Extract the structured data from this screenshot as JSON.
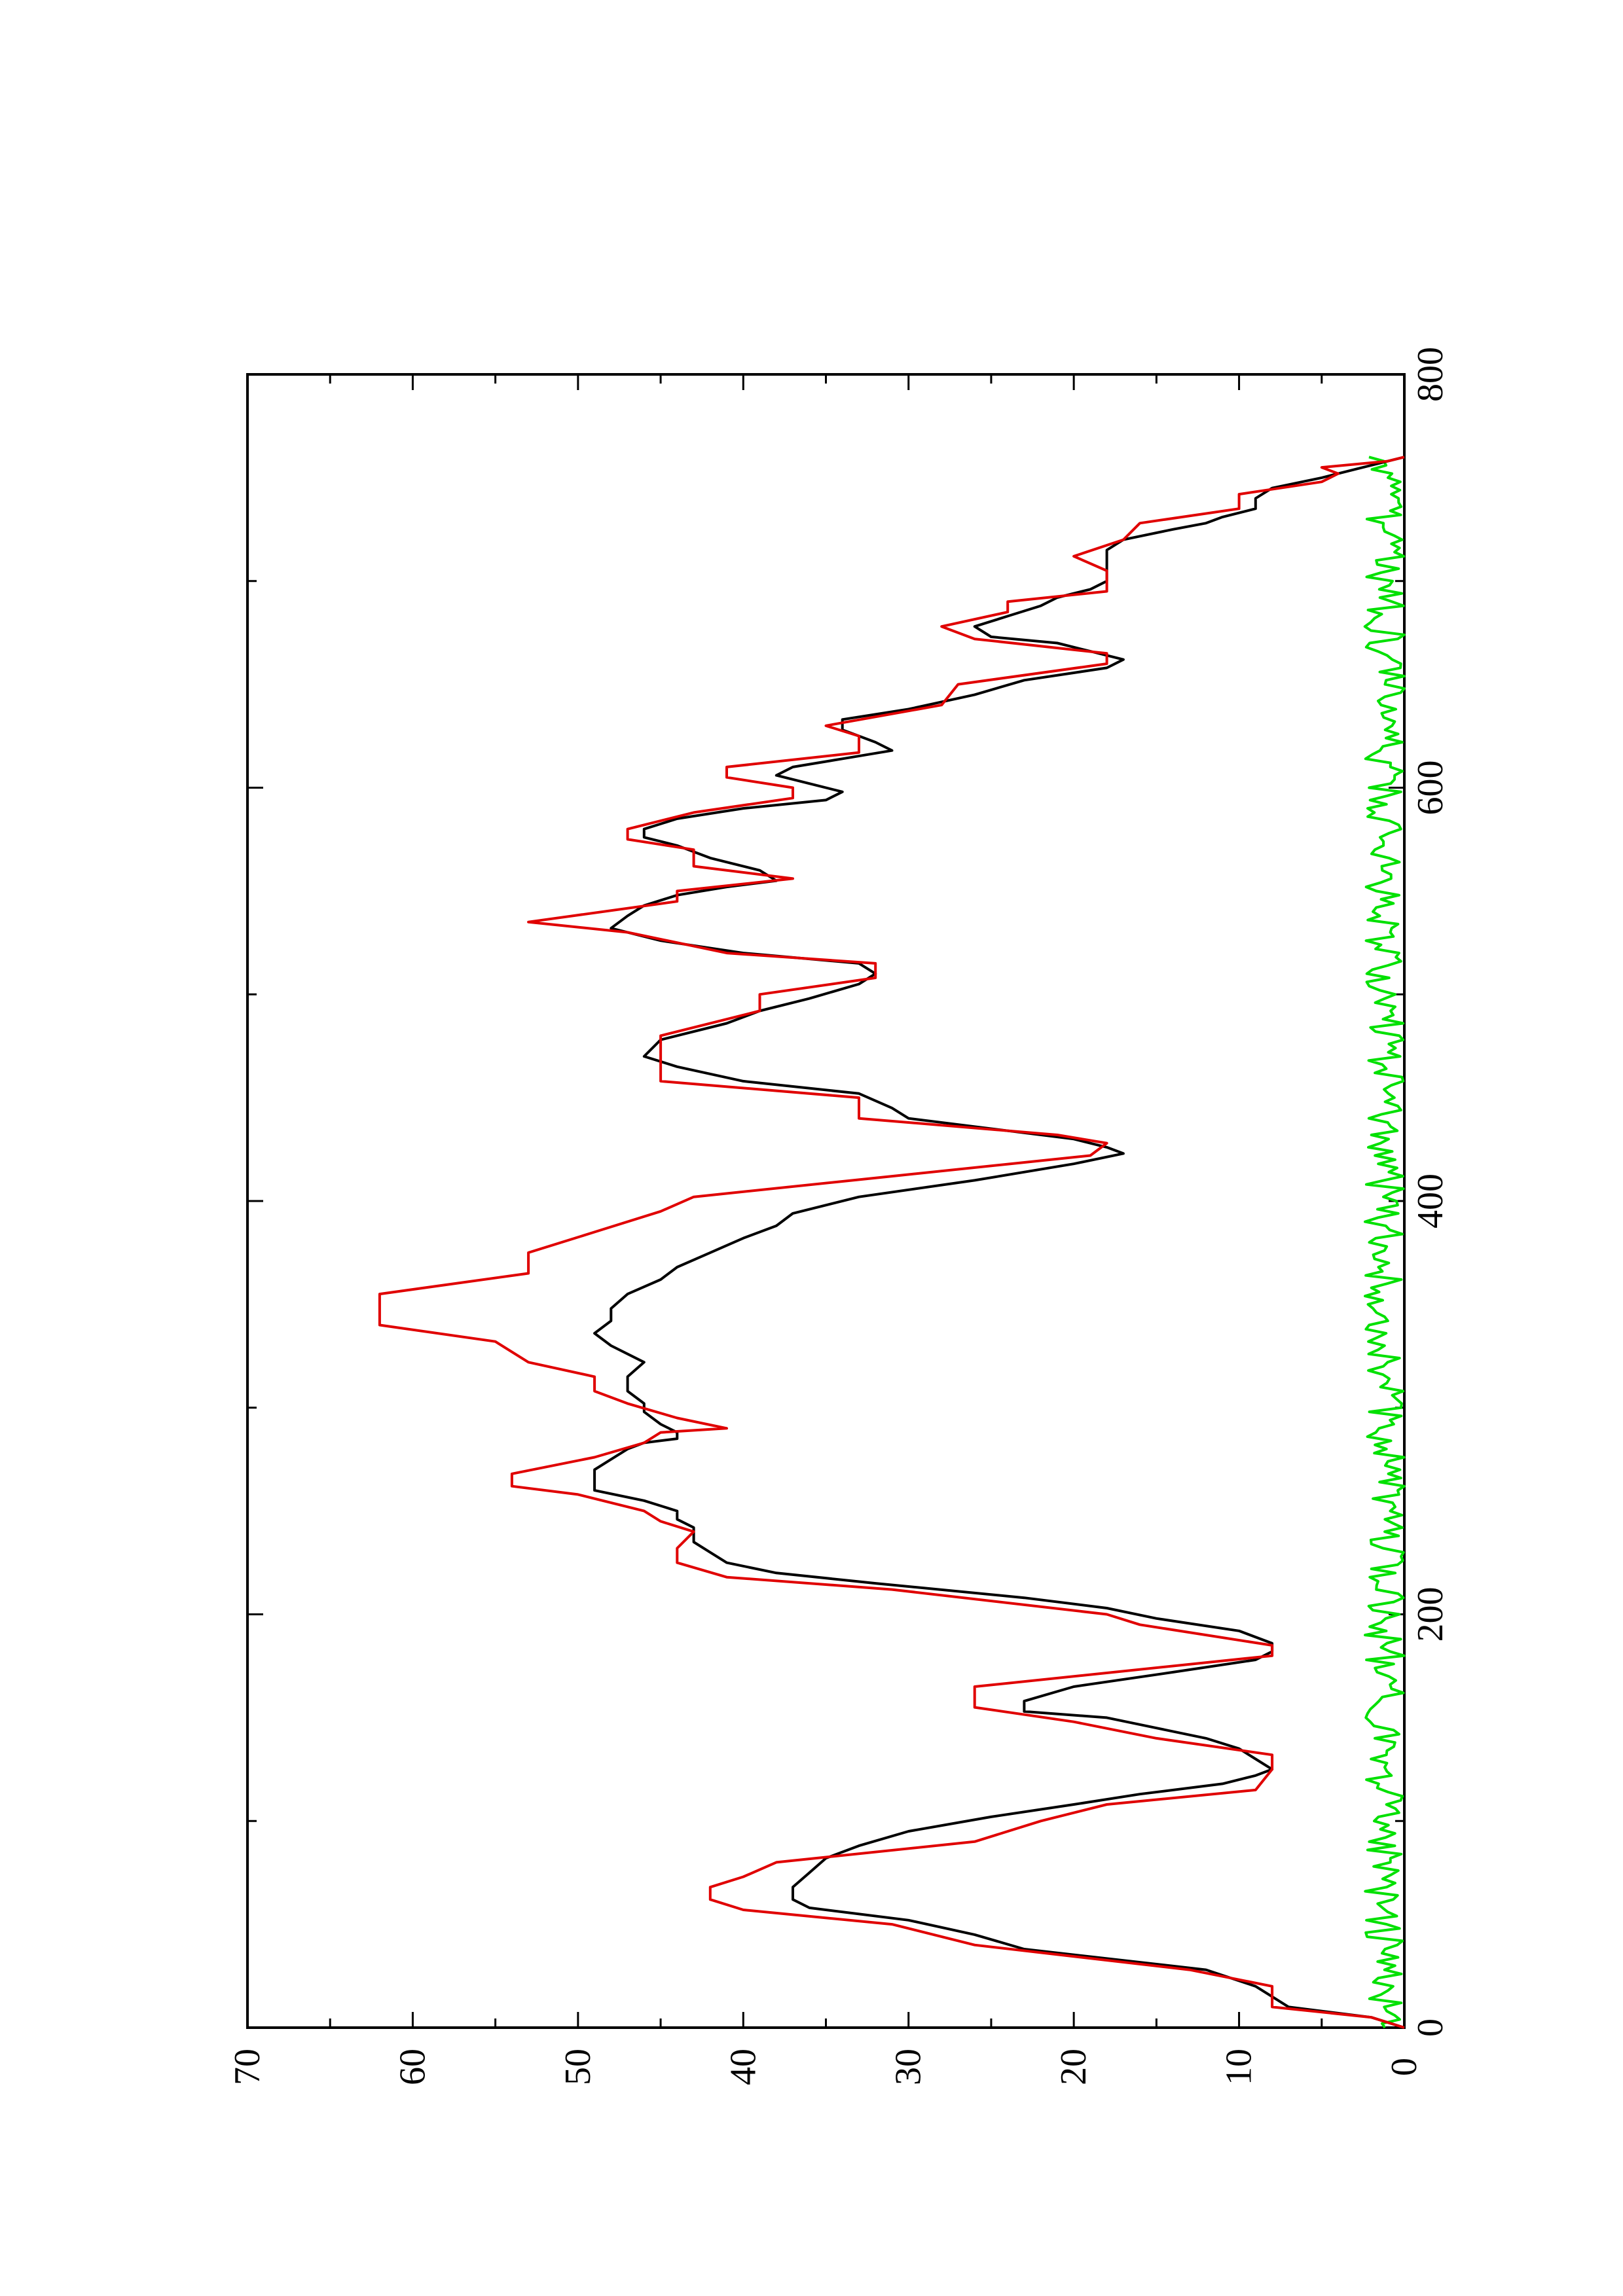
{
  "chart_data": {
    "type": "line",
    "orientation": "rotated-90-counterclockwise",
    "title": "",
    "xlabel": "",
    "ylabel": "",
    "xlim": [
      0,
      800
    ],
    "ylim": [
      0,
      70
    ],
    "x_ticks": [
      0,
      200,
      400,
      600,
      800
    ],
    "x_tick_labels": [
      "0",
      "200",
      "400",
      "600",
      "800"
    ],
    "y_ticks": [
      0,
      10,
      20,
      30,
      40,
      50,
      60,
      70
    ],
    "y_tick_labels": [
      "0",
      "10",
      "20",
      "30",
      "40",
      "50",
      "60",
      "70"
    ],
    "grid": false,
    "legend": "none",
    "series": [
      {
        "color": "#e00000",
        "style": "step",
        "points": [
          [
            0,
            0
          ],
          [
            5,
            2
          ],
          [
            10,
            8
          ],
          [
            20,
            8
          ],
          [
            28,
            13
          ],
          [
            40,
            26
          ],
          [
            50,
            31
          ],
          [
            57,
            40
          ],
          [
            62,
            42
          ],
          [
            68,
            42
          ],
          [
            73,
            40
          ],
          [
            80,
            38
          ],
          [
            90,
            26
          ],
          [
            100,
            22
          ],
          [
            108,
            18
          ],
          [
            115,
            9
          ],
          [
            125,
            8
          ],
          [
            132,
            8
          ],
          [
            140,
            15
          ],
          [
            148,
            20
          ],
          [
            155,
            26
          ],
          [
            165,
            26
          ],
          [
            180,
            8
          ],
          [
            185,
            8
          ],
          [
            195,
            16
          ],
          [
            200,
            18
          ],
          [
            212,
            31
          ],
          [
            218,
            41
          ],
          [
            225,
            44
          ],
          [
            232,
            44
          ],
          [
            240,
            43
          ],
          [
            245,
            45
          ],
          [
            250,
            46
          ],
          [
            258,
            50
          ],
          [
            262,
            54
          ],
          [
            268,
            54
          ],
          [
            276,
            49
          ],
          [
            283,
            46
          ],
          [
            288,
            45
          ],
          [
            290,
            41
          ],
          [
            295,
            44
          ],
          [
            302,
            47
          ],
          [
            308,
            49
          ],
          [
            315,
            49
          ],
          [
            322,
            53
          ],
          [
            332,
            55
          ],
          [
            340,
            62
          ],
          [
            346,
            62
          ],
          [
            355,
            62
          ],
          [
            365,
            53
          ],
          [
            375,
            53
          ],
          [
            385,
            49
          ],
          [
            395,
            45
          ],
          [
            402,
            43
          ],
          [
            412,
            31
          ],
          [
            422,
            19
          ],
          [
            428,
            18
          ],
          [
            432,
            21
          ],
          [
            440,
            33
          ],
          [
            450,
            33
          ],
          [
            458,
            45
          ],
          [
            470,
            45
          ],
          [
            480,
            45
          ],
          [
            492,
            39
          ],
          [
            500,
            39
          ],
          [
            508,
            32
          ],
          [
            515,
            32
          ],
          [
            520,
            41
          ],
          [
            530,
            47
          ],
          [
            535,
            53
          ],
          [
            545,
            44
          ],
          [
            550,
            44
          ],
          [
            556,
            37
          ],
          [
            562,
            43
          ],
          [
            570,
            43
          ],
          [
            575,
            47
          ],
          [
            580,
            47
          ],
          [
            588,
            43
          ],
          [
            595,
            37
          ],
          [
            600,
            37
          ],
          [
            605,
            41
          ],
          [
            610,
            41
          ],
          [
            617,
            33
          ],
          [
            625,
            33
          ],
          [
            630,
            35
          ],
          [
            640,
            28
          ],
          [
            650,
            27
          ],
          [
            660,
            18
          ],
          [
            665,
            18
          ],
          [
            672,
            26
          ],
          [
            678,
            28
          ],
          [
            685,
            24
          ],
          [
            690,
            24
          ],
          [
            695,
            18
          ],
          [
            705,
            18
          ],
          [
            712,
            20
          ],
          [
            720,
            17
          ],
          [
            728,
            16
          ],
          [
            735,
            10
          ],
          [
            742,
            10
          ],
          [
            748,
            5
          ],
          [
            752,
            4
          ],
          [
            755,
            5
          ],
          [
            758,
            1
          ],
          [
            760,
            0
          ]
        ]
      },
      {
        "color": "#000000",
        "style": "line",
        "points": [
          [
            0,
            0
          ],
          [
            5,
            2
          ],
          [
            10,
            7
          ],
          [
            20,
            9
          ],
          [
            28,
            12
          ],
          [
            38,
            23
          ],
          [
            45,
            26
          ],
          [
            52,
            30
          ],
          [
            58,
            36
          ],
          [
            62,
            37
          ],
          [
            68,
            37
          ],
          [
            75,
            36
          ],
          [
            82,
            35
          ],
          [
            88,
            33
          ],
          [
            95,
            30
          ],
          [
            102,
            25
          ],
          [
            108,
            20
          ],
          [
            113,
            16
          ],
          [
            118,
            11
          ],
          [
            122,
            9
          ],
          [
            125,
            8
          ],
          [
            130,
            9
          ],
          [
            135,
            10
          ],
          [
            140,
            12
          ],
          [
            145,
            15
          ],
          [
            150,
            18
          ],
          [
            153,
            23
          ],
          [
            158,
            23
          ],
          [
            165,
            20
          ],
          [
            172,
            14
          ],
          [
            178,
            9
          ],
          [
            182,
            8
          ],
          [
            186,
            8
          ],
          [
            192,
            10
          ],
          [
            198,
            15
          ],
          [
            203,
            18
          ],
          [
            208,
            23
          ],
          [
            215,
            32
          ],
          [
            220,
            38
          ],
          [
            225,
            41
          ],
          [
            230,
            42
          ],
          [
            235,
            43
          ],
          [
            242,
            43
          ],
          [
            246,
            44
          ],
          [
            250,
            44
          ],
          [
            255,
            46
          ],
          [
            260,
            49
          ],
          [
            265,
            49
          ],
          [
            270,
            49
          ],
          [
            275,
            48
          ],
          [
            280,
            47
          ],
          [
            283,
            46
          ],
          [
            285,
            44
          ],
          [
            288,
            44
          ],
          [
            292,
            45
          ],
          [
            298,
            46
          ],
          [
            302,
            46
          ],
          [
            308,
            47
          ],
          [
            315,
            47
          ],
          [
            322,
            46
          ],
          [
            330,
            48
          ],
          [
            336,
            49
          ],
          [
            342,
            48
          ],
          [
            348,
            48
          ],
          [
            355,
            47
          ],
          [
            362,
            45
          ],
          [
            368,
            44
          ],
          [
            375,
            42
          ],
          [
            382,
            40
          ],
          [
            388,
            38
          ],
          [
            394,
            37
          ],
          [
            398,
            35
          ],
          [
            402,
            33
          ],
          [
            410,
            26
          ],
          [
            418,
            20
          ],
          [
            423,
            17
          ],
          [
            426,
            18
          ],
          [
            430,
            20
          ],
          [
            436,
            26
          ],
          [
            440,
            30
          ],
          [
            445,
            31
          ],
          [
            452,
            33
          ],
          [
            458,
            40
          ],
          [
            465,
            44
          ],
          [
            470,
            46
          ],
          [
            478,
            45
          ],
          [
            486,
            41
          ],
          [
            492,
            39
          ],
          [
            498,
            36
          ],
          [
            505,
            33
          ],
          [
            510,
            32
          ],
          [
            515,
            33
          ],
          [
            520,
            40
          ],
          [
            526,
            45
          ],
          [
            532,
            48
          ],
          [
            538,
            47
          ],
          [
            543,
            46
          ],
          [
            548,
            44
          ],
          [
            552,
            41
          ],
          [
            555,
            38
          ],
          [
            560,
            39
          ],
          [
            566,
            42
          ],
          [
            572,
            44
          ],
          [
            576,
            46
          ],
          [
            580,
            46
          ],
          [
            585,
            44
          ],
          [
            590,
            40
          ],
          [
            594,
            35
          ],
          [
            598,
            34
          ],
          [
            602,
            36
          ],
          [
            606,
            38
          ],
          [
            610,
            37
          ],
          [
            614,
            34
          ],
          [
            618,
            31
          ],
          [
            622,
            32
          ],
          [
            628,
            34
          ],
          [
            633,
            34
          ],
          [
            638,
            30
          ],
          [
            645,
            26
          ],
          [
            652,
            23
          ],
          [
            658,
            18
          ],
          [
            662,
            17
          ],
          [
            666,
            19
          ],
          [
            670,
            21
          ],
          [
            673,
            25
          ],
          [
            678,
            26
          ],
          [
            683,
            24
          ],
          [
            688,
            22
          ],
          [
            692,
            21
          ],
          [
            696,
            19
          ],
          [
            700,
            18
          ],
          [
            705,
            18
          ],
          [
            710,
            18
          ],
          [
            715,
            18
          ],
          [
            720,
            17
          ],
          [
            725,
            14
          ],
          [
            728,
            12
          ],
          [
            731,
            11
          ],
          [
            735,
            9
          ],
          [
            740,
            9
          ],
          [
            745,
            8
          ],
          [
            750,
            5
          ],
          [
            754,
            3
          ],
          [
            758,
            1
          ],
          [
            760,
            0
          ]
        ]
      },
      {
        "color": "#00e000",
        "style": "line",
        "points": []
      }
    ]
  }
}
